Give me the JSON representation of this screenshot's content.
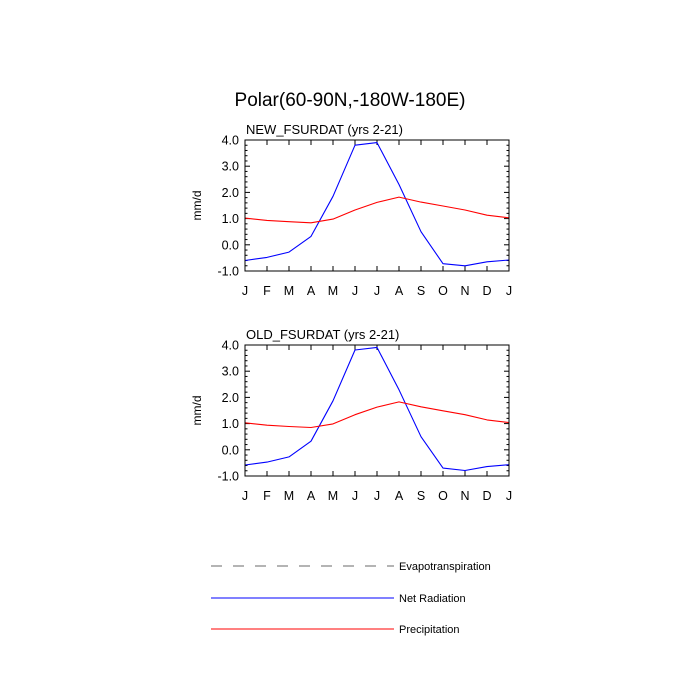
{
  "title": "Polar(60-90N,-180W-180E)",
  "chart_data": [
    {
      "type": "line",
      "title": "NEW_FSURDAT (yrs 2-21)",
      "ylabel": "mm/d",
      "xlabel": "",
      "categories": [
        "J",
        "F",
        "M",
        "A",
        "M",
        "J",
        "J",
        "A",
        "S",
        "O",
        "N",
        "D",
        "J"
      ],
      "yticks": [
        "4.0",
        "3.0",
        "2.0",
        "1.0",
        "0.0",
        "-1.0"
      ],
      "ylim": [
        -1.0,
        4.0
      ],
      "series": [
        {
          "name": "Net Radiation",
          "color": "#0000ff",
          "values": [
            -0.6,
            -0.48,
            -0.28,
            0.32,
            1.85,
            3.8,
            3.9,
            2.3,
            0.5,
            -0.72,
            -0.8,
            -0.65,
            -0.58
          ]
        },
        {
          "name": "Precipitation",
          "color": "#ff0000",
          "values": [
            1.02,
            0.93,
            0.88,
            0.84,
            0.98,
            1.33,
            1.62,
            1.82,
            1.63,
            1.48,
            1.33,
            1.13,
            1.03
          ]
        }
      ]
    },
    {
      "type": "line",
      "title": "OLD_FSURDAT (yrs 2-21)",
      "ylabel": "mm/d",
      "xlabel": "",
      "categories": [
        "J",
        "F",
        "M",
        "A",
        "M",
        "J",
        "J",
        "A",
        "S",
        "O",
        "N",
        "D",
        "J"
      ],
      "yticks": [
        "4.0",
        "3.0",
        "2.0",
        "1.0",
        "0.0",
        "-1.0"
      ],
      "ylim": [
        -1.0,
        4.0
      ],
      "series": [
        {
          "name": "Net Radiation",
          "color": "#0000ff",
          "values": [
            -0.58,
            -0.47,
            -0.27,
            0.33,
            1.87,
            3.81,
            3.91,
            2.29,
            0.5,
            -0.7,
            -0.79,
            -0.64,
            -0.57
          ]
        },
        {
          "name": "Precipitation",
          "color": "#ff0000",
          "values": [
            1.03,
            0.94,
            0.89,
            0.85,
            0.99,
            1.34,
            1.63,
            1.83,
            1.64,
            1.49,
            1.34,
            1.14,
            1.04
          ]
        }
      ]
    }
  ],
  "legend": [
    {
      "label": "Evapotranspiration",
      "color": "#888888",
      "style": "dashed"
    },
    {
      "label": "Net Radiation",
      "color": "#0000ff",
      "style": "solid"
    },
    {
      "label": "Precipitation",
      "color": "#ff0000",
      "style": "solid"
    }
  ]
}
